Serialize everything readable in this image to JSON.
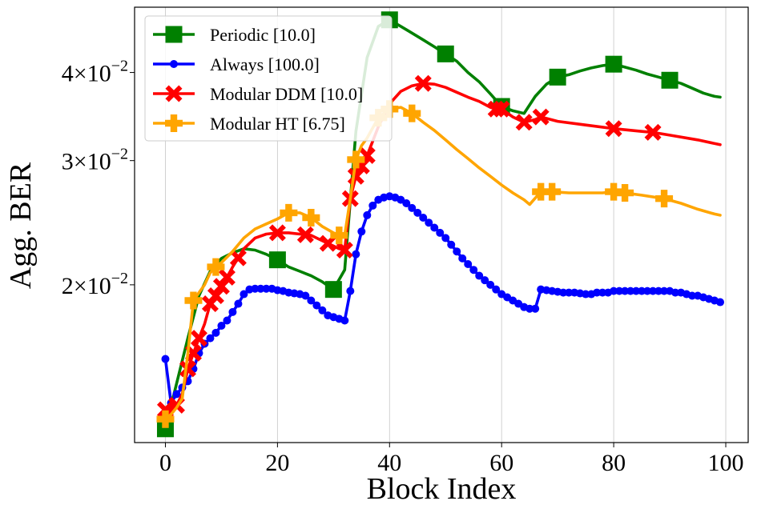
{
  "chart_data": {
    "type": "line",
    "title": "",
    "xlabel": "Block Index",
    "ylabel": "Agg. BER",
    "yscale": "log",
    "xlim": [
      -5.5,
      104
    ],
    "ylim": [
      0.01195,
      0.0495
    ],
    "xticks": [
      0,
      20,
      40,
      60,
      80,
      100
    ],
    "xtick_labels": [
      "0",
      "20",
      "40",
      "60",
      "80",
      "100"
    ],
    "yticks": [
      {
        "value": 0.02,
        "mantissa": "2",
        "exponent": "−2"
      },
      {
        "value": 0.03,
        "mantissa": "3",
        "exponent": "−2"
      },
      {
        "value": 0.04,
        "mantissa": "4",
        "exponent": "−2"
      }
    ],
    "ytick_times": "×10",
    "grid": "vertical",
    "legend_position": "top-left",
    "series": [
      {
        "name": "Periodic [10.0]",
        "color": "#008000",
        "marker": "square",
        "x": [
          0,
          2,
          4,
          6,
          8,
          10,
          12,
          14,
          16,
          18,
          20,
          22,
          24,
          26,
          28,
          30,
          32,
          34,
          36,
          38,
          40,
          42,
          44,
          46,
          48,
          50,
          52,
          54,
          56,
          58,
          60,
          62,
          64,
          66,
          68,
          70,
          72,
          74,
          76,
          78,
          80,
          82,
          84,
          86,
          88,
          90,
          92,
          94,
          96,
          98,
          99
        ],
        "y": [
          0.0125,
          0.0145,
          0.0168,
          0.0193,
          0.0209,
          0.0218,
          0.0222,
          0.0225,
          0.0224,
          0.0221,
          0.0217,
          0.0212,
          0.0209,
          0.0206,
          0.0202,
          0.0197,
          0.021,
          0.033,
          0.042,
          0.0465,
          0.0475,
          0.0465,
          0.0455,
          0.0445,
          0.0435,
          0.0425,
          0.0415,
          0.04,
          0.0388,
          0.0373,
          0.0358,
          0.0353,
          0.035,
          0.037,
          0.0385,
          0.0394,
          0.0397,
          0.0402,
          0.0406,
          0.0409,
          0.0411,
          0.0407,
          0.0403,
          0.0398,
          0.0394,
          0.039,
          0.0386,
          0.038,
          0.0374,
          0.037,
          0.0369
        ],
        "marker_x": [
          0,
          20,
          30,
          40,
          50,
          60,
          70,
          80,
          90
        ]
      },
      {
        "name": "Always [100.0]",
        "color": "#0000ff",
        "marker": "circle",
        "x": [
          0,
          1,
          2,
          3,
          4,
          5,
          6,
          7,
          8,
          9,
          10,
          11,
          12,
          13,
          14,
          15,
          16,
          17,
          18,
          19,
          20,
          21,
          22,
          23,
          24,
          25,
          26,
          27,
          28,
          29,
          30,
          31,
          32,
          33,
          34,
          35,
          36,
          37,
          38,
          39,
          40,
          41,
          42,
          43,
          44,
          45,
          46,
          47,
          48,
          49,
          50,
          51,
          52,
          53,
          54,
          55,
          56,
          57,
          58,
          59,
          60,
          61,
          62,
          63,
          64,
          65,
          66,
          67,
          68,
          69,
          70,
          71,
          72,
          73,
          74,
          75,
          76,
          77,
          78,
          79,
          80,
          81,
          82,
          83,
          84,
          85,
          86,
          87,
          88,
          89,
          90,
          91,
          92,
          93,
          94,
          95,
          96,
          97,
          98,
          99
        ],
        "y": [
          0.0157,
          0.0136,
          0.014,
          0.0143,
          0.0146,
          0.0152,
          0.016,
          0.0165,
          0.0168,
          0.0171,
          0.0175,
          0.0178,
          0.0183,
          0.0188,
          0.0194,
          0.0197,
          0.01975,
          0.01975,
          0.01975,
          0.01975,
          0.01965,
          0.0196,
          0.0195,
          0.01945,
          0.0194,
          0.0193,
          0.019,
          0.0187,
          0.0184,
          0.0181,
          0.018,
          0.0179,
          0.0178,
          0.0196,
          0.0221,
          0.0238,
          0.0251,
          0.0259,
          0.0264,
          0.0266,
          0.0267,
          0.0266,
          0.0264,
          0.0261,
          0.0257,
          0.0253,
          0.0249,
          0.0245,
          0.0241,
          0.0237,
          0.0233,
          0.0228,
          0.0223,
          0.0218,
          0.0214,
          0.021,
          0.0206,
          0.0203,
          0.02,
          0.0197,
          0.0194,
          0.0192,
          0.019,
          0.0188,
          0.0186,
          0.0185,
          0.0185,
          0.0197,
          0.01965,
          0.0196,
          0.01955,
          0.0195,
          0.0195,
          0.0195,
          0.01945,
          0.0194,
          0.0194,
          0.0195,
          0.0195,
          0.0195,
          0.0196,
          0.0196,
          0.0196,
          0.0196,
          0.0196,
          0.0196,
          0.0196,
          0.0196,
          0.0196,
          0.0196,
          0.0196,
          0.0195,
          0.0195,
          0.0194,
          0.0193,
          0.0193,
          0.0192,
          0.0191,
          0.019,
          0.0189
        ],
        "marker_x": "all"
      },
      {
        "name": "Modular DDM [10.0]",
        "color": "#ff0000",
        "marker": "x",
        "x": [
          0,
          1,
          2,
          3,
          4,
          5,
          6,
          7,
          8,
          9,
          10,
          11,
          12,
          14,
          16,
          18,
          20,
          22,
          24,
          26,
          28,
          30,
          31,
          32,
          33,
          34,
          36,
          38,
          40,
          42,
          44,
          46,
          48,
          50,
          52,
          54,
          56,
          58,
          59,
          60,
          62,
          64,
          66,
          67,
          70,
          75,
          80,
          85,
          87,
          90,
          95,
          99
        ],
        "y": [
          0.0133,
          0.0135,
          0.0135,
          0.014,
          0.0152,
          0.016,
          0.0168,
          0.0176,
          0.0188,
          0.0193,
          0.0199,
          0.0205,
          0.0212,
          0.0225,
          0.0233,
          0.0236,
          0.0237,
          0.0237,
          0.0236,
          0.0235,
          0.0231,
          0.0227,
          0.0225,
          0.0224,
          0.0265,
          0.0285,
          0.0305,
          0.0335,
          0.0361,
          0.0376,
          0.0383,
          0.0386,
          0.0385,
          0.0381,
          0.0375,
          0.0369,
          0.0364,
          0.0357,
          0.0355,
          0.0355,
          0.0346,
          0.034,
          0.0343,
          0.0346,
          0.0341,
          0.0337,
          0.0333,
          0.033,
          0.0329,
          0.0326,
          0.0321,
          0.0316
        ],
        "marker_x": [
          0,
          2,
          4,
          5,
          6,
          8,
          9,
          10,
          11,
          13,
          20,
          25,
          29,
          32,
          33,
          34,
          35,
          36,
          46,
          59,
          60,
          64,
          67,
          80,
          87
        ]
      },
      {
        "name": "Modular HT [6.75]",
        "color": "#ffa500",
        "marker": "plus",
        "x": [
          0,
          1,
          2,
          3,
          4,
          5,
          6,
          7,
          8,
          9,
          10,
          12,
          14,
          16,
          18,
          20,
          22,
          24,
          26,
          28,
          30,
          31,
          32,
          33,
          34,
          35,
          36,
          38,
          40,
          42,
          44,
          46,
          48,
          50,
          52,
          54,
          56,
          58,
          60,
          62,
          64,
          65,
          67,
          69,
          72,
          75,
          78,
          80,
          82,
          85,
          89,
          92,
          95,
          98,
          99
        ],
        "y": [
          0.0129,
          0.0131,
          0.0134,
          0.0138,
          0.016,
          0.019,
          0.0195,
          0.02,
          0.0208,
          0.0212,
          0.0215,
          0.0223,
          0.0233,
          0.024,
          0.0244,
          0.0248,
          0.0253,
          0.0253,
          0.0249,
          0.0242,
          0.0237,
          0.0235,
          0.0235,
          0.0265,
          0.0301,
          0.0315,
          0.0323,
          0.0345,
          0.0355,
          0.0357,
          0.035,
          0.034,
          0.0331,
          0.0321,
          0.0311,
          0.0302,
          0.0293,
          0.0285,
          0.0277,
          0.027,
          0.0264,
          0.026,
          0.0271,
          0.0271,
          0.027,
          0.027,
          0.027,
          0.0271,
          0.027,
          0.0268,
          0.0265,
          0.0261,
          0.0256,
          0.0252,
          0.0251
        ],
        "marker_x": [
          0,
          5,
          9,
          22,
          26,
          31,
          34,
          38,
          40,
          44,
          67,
          69,
          80,
          82,
          89
        ]
      }
    ]
  }
}
